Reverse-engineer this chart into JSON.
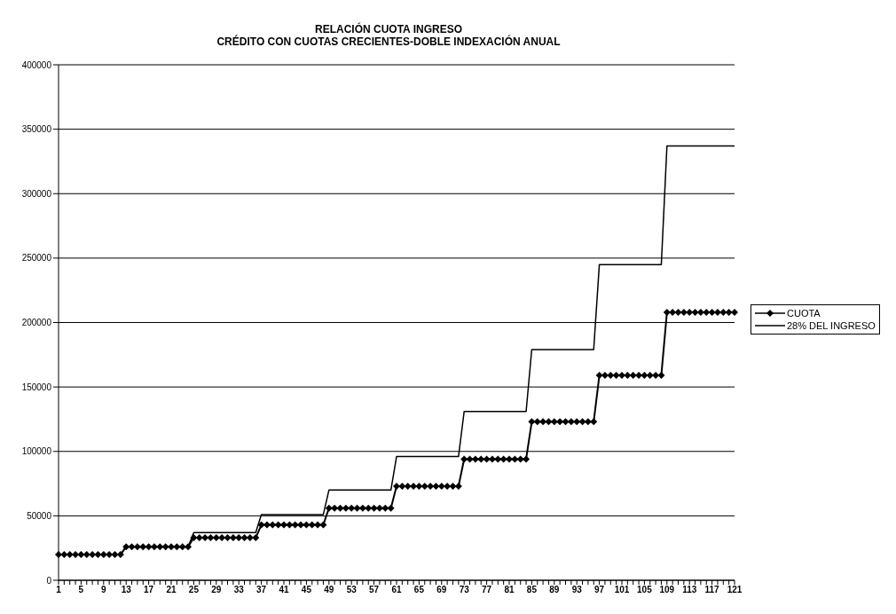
{
  "chart_data": {
    "type": "line",
    "title": "RELACIÓN CUOTA INGRESO",
    "subtitle": "CRÉDITO CON CUOTAS CRECIENTES-DOBLE INDEXACIÓN ANUAL",
    "categories": [
      "1",
      null,
      null,
      null,
      "5",
      null,
      null,
      null,
      "9",
      null,
      null,
      null,
      "13",
      null,
      null,
      null,
      "17",
      null,
      null,
      null,
      "21",
      null,
      null,
      null,
      "25",
      null,
      null,
      null,
      "29",
      null,
      null,
      null,
      "33",
      null,
      null,
      null,
      "37",
      null,
      null,
      null,
      "41",
      null,
      null,
      null,
      "45",
      null,
      null,
      null,
      "49",
      null,
      null,
      null,
      "53",
      null,
      null,
      null,
      "57",
      null,
      null,
      null,
      "61",
      null,
      null,
      null,
      "65",
      null,
      null,
      null,
      "69",
      null,
      null,
      null,
      "73",
      null,
      null,
      null,
      "77",
      null,
      null,
      null,
      "81",
      null,
      null,
      null,
      "85",
      null,
      null,
      null,
      "89",
      null,
      null,
      null,
      "93",
      null,
      null,
      null,
      "97",
      null,
      null,
      null,
      "101",
      null,
      null,
      null,
      "105",
      null,
      null,
      null,
      "109",
      null,
      null,
      null,
      "113",
      null,
      null,
      null,
      "117",
      null,
      null,
      null,
      "121"
    ],
    "series": [
      {
        "name": "CUOTA",
        "color": "#000000",
        "marker": "diamond",
        "values": [
          20000,
          20000,
          20000,
          20000,
          20000,
          20000,
          20000,
          20000,
          20000,
          20000,
          20000,
          20000,
          26000,
          26000,
          26000,
          26000,
          26000,
          26000,
          26000,
          26000,
          26000,
          26000,
          26000,
          26000,
          33000,
          33000,
          33000,
          33000,
          33000,
          33000,
          33000,
          33000,
          33000,
          33000,
          33000,
          33000,
          43000,
          43000,
          43000,
          43000,
          43000,
          43000,
          43000,
          43000,
          43000,
          43000,
          43000,
          43000,
          56000,
          56000,
          56000,
          56000,
          56000,
          56000,
          56000,
          56000,
          56000,
          56000,
          56000,
          56000,
          73000,
          73000,
          73000,
          73000,
          73000,
          73000,
          73000,
          73000,
          73000,
          73000,
          73000,
          73000,
          94000,
          94000,
          94000,
          94000,
          94000,
          94000,
          94000,
          94000,
          94000,
          94000,
          94000,
          94000,
          123000,
          123000,
          123000,
          123000,
          123000,
          123000,
          123000,
          123000,
          123000,
          123000,
          123000,
          123000,
          159000,
          159000,
          159000,
          159000,
          159000,
          159000,
          159000,
          159000,
          159000,
          159000,
          159000,
          159000,
          208000,
          208000,
          208000,
          208000,
          208000,
          208000,
          208000,
          208000,
          208000,
          208000,
          208000,
          208000,
          208000
        ]
      },
      {
        "name": "28% DEL INGRESO",
        "color": "#000000",
        "marker": "none",
        "values": [
          20000,
          20000,
          20000,
          20000,
          20000,
          20000,
          20000,
          20000,
          20000,
          20000,
          20000,
          20000,
          26000,
          26000,
          26000,
          26000,
          26000,
          26000,
          26000,
          26000,
          26000,
          26000,
          26000,
          26000,
          37000,
          37000,
          37000,
          37000,
          37000,
          37000,
          37000,
          37000,
          37000,
          37000,
          37000,
          37000,
          51000,
          51000,
          51000,
          51000,
          51000,
          51000,
          51000,
          51000,
          51000,
          51000,
          51000,
          51000,
          70000,
          70000,
          70000,
          70000,
          70000,
          70000,
          70000,
          70000,
          70000,
          70000,
          70000,
          70000,
          96000,
          96000,
          96000,
          96000,
          96000,
          96000,
          96000,
          96000,
          96000,
          96000,
          96000,
          96000,
          131000,
          131000,
          131000,
          131000,
          131000,
          131000,
          131000,
          131000,
          131000,
          131000,
          131000,
          131000,
          179000,
          179000,
          179000,
          179000,
          179000,
          179000,
          179000,
          179000,
          179000,
          179000,
          179000,
          179000,
          245000,
          245000,
          245000,
          245000,
          245000,
          245000,
          245000,
          245000,
          245000,
          245000,
          245000,
          245000,
          337000,
          337000,
          337000,
          337000,
          337000,
          337000,
          337000,
          337000,
          337000,
          337000,
          337000,
          337000,
          337000
        ]
      }
    ],
    "ylim": [
      0,
      400000
    ],
    "yticks": [
      0,
      50000,
      100000,
      150000,
      200000,
      250000,
      300000,
      350000,
      400000
    ],
    "grid": "y",
    "legend": "right"
  }
}
